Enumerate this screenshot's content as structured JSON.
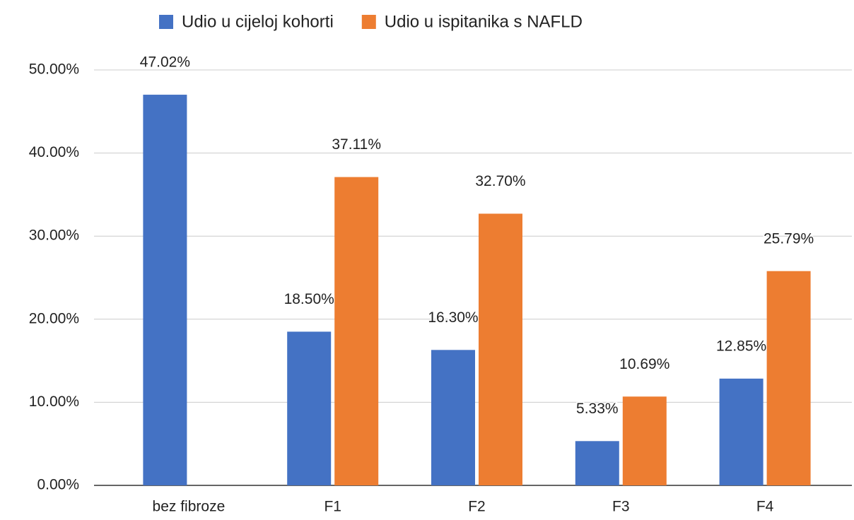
{
  "chart_data": {
    "type": "bar",
    "categories": [
      "bez fibroze",
      "F1",
      "F2",
      "F3",
      "F4"
    ],
    "series": [
      {
        "name": "Udio u cijeloj kohorti",
        "color": "#4472c4",
        "values": [
          47.02,
          18.5,
          16.3,
          5.33,
          12.85
        ],
        "value_labels": [
          "47.02%",
          "18.50%",
          "16.30%",
          "5.33%",
          "12.85%"
        ]
      },
      {
        "name": "Udio u ispitanika s NAFLD",
        "color": "#ed7d31",
        "values": [
          null,
          37.11,
          32.7,
          10.69,
          25.79
        ],
        "value_labels": [
          null,
          "37.11%",
          "32.70%",
          "10.69%",
          "25.79%"
        ]
      }
    ],
    "ylim": [
      0,
      50
    ],
    "yticks": [
      {
        "value": 0,
        "label": "0.00%"
      },
      {
        "value": 10,
        "label": "10.00%"
      },
      {
        "value": 20,
        "label": "20.00%"
      },
      {
        "value": 30,
        "label": "30.00%"
      },
      {
        "value": 40,
        "label": "40.00%"
      },
      {
        "value": 50,
        "label": "50.00%"
      }
    ],
    "grid": true,
    "legend": "top"
  }
}
